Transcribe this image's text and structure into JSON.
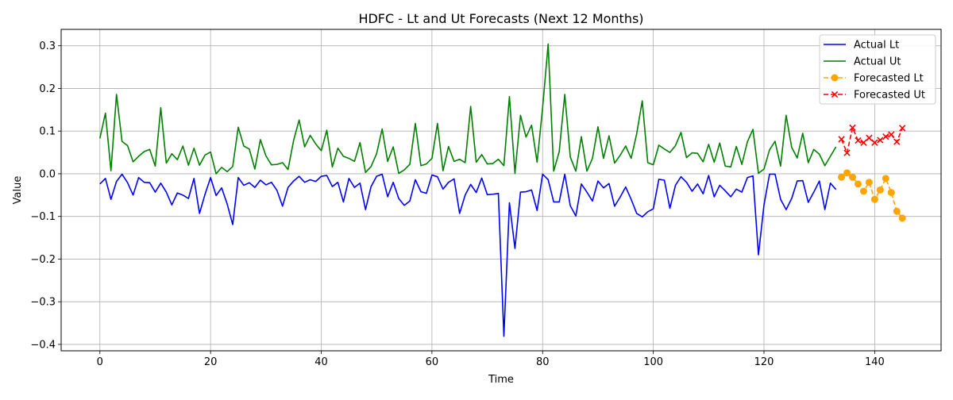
{
  "chart_data": {
    "type": "line",
    "title": "HDFC - Lt and Ut Forecasts (Next 12 Months)",
    "xlabel": "Time",
    "ylabel": "Value",
    "xlim": [
      -7,
      152
    ],
    "ylim": [
      -0.415,
      0.3385
    ],
    "xticks": [
      0,
      20,
      40,
      60,
      80,
      100,
      120,
      140
    ],
    "yticks": [
      -0.4,
      -0.3,
      -0.2,
      -0.1,
      0.0,
      0.1,
      0.2,
      0.3
    ],
    "ytick_labels": [
      "−0.4",
      "−0.3",
      "−0.2",
      "−0.1",
      "0.0",
      "0.1",
      "0.2",
      "0.3"
    ],
    "grid": true,
    "legend_position": "top-right",
    "series": [
      {
        "name": "Actual Lt",
        "color": "#0000ff",
        "style": "solid",
        "marker": "none",
        "x_start": 0,
        "values": [
          -0.024,
          -0.011,
          -0.06,
          -0.018,
          -0.001,
          -0.021,
          -0.05,
          -0.009,
          -0.02,
          -0.021,
          -0.043,
          -0.022,
          -0.043,
          -0.073,
          -0.045,
          -0.05,
          -0.058,
          -0.011,
          -0.093,
          -0.048,
          -0.009,
          -0.051,
          -0.033,
          -0.071,
          -0.119,
          -0.009,
          -0.027,
          -0.021,
          -0.032,
          -0.015,
          -0.026,
          -0.02,
          -0.039,
          -0.076,
          -0.032,
          -0.017,
          -0.006,
          -0.02,
          -0.014,
          -0.018,
          -0.006,
          -0.004,
          -0.03,
          -0.02,
          -0.066,
          -0.011,
          -0.032,
          -0.022,
          -0.084,
          -0.03,
          -0.006,
          -0.001,
          -0.054,
          -0.02,
          -0.058,
          -0.074,
          -0.064,
          -0.014,
          -0.042,
          -0.046,
          -0.003,
          -0.007,
          -0.036,
          -0.02,
          -0.012,
          -0.093,
          -0.05,
          -0.025,
          -0.044,
          -0.01,
          -0.049,
          -0.048,
          -0.046,
          -0.381,
          -0.068,
          -0.175,
          -0.043,
          -0.042,
          -0.038,
          -0.086,
          -0.001,
          -0.014,
          -0.066,
          -0.066,
          -0.001,
          -0.075,
          -0.099,
          -0.024,
          -0.043,
          -0.064,
          -0.017,
          -0.033,
          -0.023,
          -0.076,
          -0.055,
          -0.031,
          -0.06,
          -0.093,
          -0.101,
          -0.089,
          -0.082,
          -0.013,
          -0.015,
          -0.081,
          -0.027,
          -0.007,
          -0.02,
          -0.041,
          -0.024,
          -0.047,
          -0.004,
          -0.054,
          -0.027,
          -0.04,
          -0.054,
          -0.036,
          -0.043,
          -0.009,
          -0.005,
          -0.19,
          -0.073,
          -0.001,
          -0.001,
          -0.06,
          -0.084,
          -0.058,
          -0.017,
          -0.016,
          -0.067,
          -0.043,
          -0.017,
          -0.084,
          -0.022,
          -0.037
        ]
      },
      {
        "name": "Actual Ut",
        "color": "#008000",
        "style": "solid",
        "marker": "none",
        "x_start": 0,
        "values": [
          0.083,
          0.142,
          0.007,
          0.186,
          0.076,
          0.066,
          0.028,
          0.041,
          0.052,
          0.057,
          0.018,
          0.155,
          0.025,
          0.047,
          0.033,
          0.065,
          0.02,
          0.06,
          0.02,
          0.044,
          0.051,
          0.0,
          0.015,
          0.005,
          0.017,
          0.109,
          0.065,
          0.058,
          0.011,
          0.08,
          0.042,
          0.021,
          0.022,
          0.026,
          0.01,
          0.078,
          0.126,
          0.063,
          0.09,
          0.07,
          0.054,
          0.102,
          0.016,
          0.06,
          0.041,
          0.036,
          0.029,
          0.073,
          0.003,
          0.017,
          0.047,
          0.105,
          0.029,
          0.063,
          0.001,
          0.009,
          0.022,
          0.118,
          0.019,
          0.023,
          0.036,
          0.118,
          0.007,
          0.064,
          0.029,
          0.034,
          0.026,
          0.158,
          0.027,
          0.045,
          0.023,
          0.024,
          0.034,
          0.019,
          0.181,
          0.001,
          0.137,
          0.086,
          0.114,
          0.027,
          0.155,
          0.304,
          0.006,
          0.052,
          0.186,
          0.039,
          0.006,
          0.087,
          0.006,
          0.036,
          0.11,
          0.036,
          0.089,
          0.025,
          0.043,
          0.065,
          0.036,
          0.094,
          0.171,
          0.026,
          0.021,
          0.067,
          0.058,
          0.05,
          0.066,
          0.097,
          0.038,
          0.049,
          0.048,
          0.028,
          0.069,
          0.027,
          0.072,
          0.018,
          0.016,
          0.064,
          0.022,
          0.075,
          0.104,
          0.001,
          0.011,
          0.056,
          0.076,
          0.018,
          0.137,
          0.062,
          0.037,
          0.095,
          0.026,
          0.057,
          0.046,
          0.019,
          0.041,
          0.063
        ]
      },
      {
        "name": "Forecasted Lt",
        "color": "#ffa500",
        "style": "dashed",
        "marker": "circle",
        "x_start": 134,
        "values": [
          -0.008,
          0.002,
          -0.008,
          -0.024,
          -0.041,
          -0.02,
          -0.06,
          -0.038,
          -0.011,
          -0.044,
          -0.088,
          -0.104
        ]
      },
      {
        "name": "Forecasted Ut",
        "color": "#ff0000",
        "style": "dashed",
        "marker": "x",
        "x_start": 134,
        "values": [
          0.081,
          0.049,
          0.108,
          0.078,
          0.073,
          0.084,
          0.073,
          0.079,
          0.087,
          0.092,
          0.075,
          0.107
        ]
      }
    ]
  }
}
